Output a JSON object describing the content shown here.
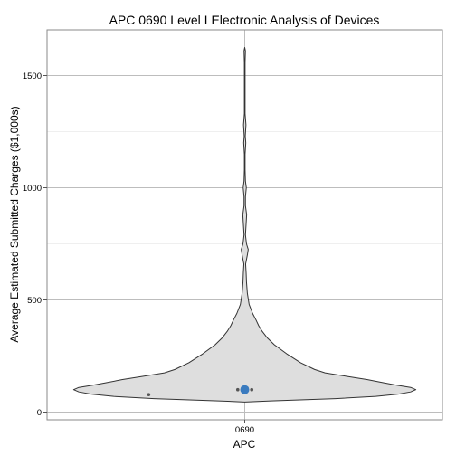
{
  "chart_data": {
    "type": "violin",
    "title": "APC 0690 Level I Electronic Analysis of Devices",
    "xlabel": "APC",
    "ylabel": "Average Estimated Submitted Charges ($1,000s)",
    "categories": [
      "0690"
    ],
    "ylim": [
      -25,
      1700
    ],
    "y_ticks": [
      0,
      500,
      1000,
      1500
    ],
    "y_tick_labels": [
      "0",
      "500",
      "1000",
      "1500"
    ],
    "grid": true,
    "colors": {
      "violin_fill": "#dedede",
      "violin_stroke": "#333333",
      "mean_point": "#3a7bbf",
      "outlier_point": "#555555",
      "grid_major": "#bdbdbd",
      "grid_minor": "#efefef",
      "panel_border": "#8a8a8a"
    },
    "violin_profile": [
      {
        "y": 45,
        "w": 0.0
      },
      {
        "y": 50,
        "w": 0.15
      },
      {
        "y": 60,
        "w": 0.52
      },
      {
        "y": 70,
        "w": 0.75
      },
      {
        "y": 80,
        "w": 0.88
      },
      {
        "y": 90,
        "w": 0.95
      },
      {
        "y": 100,
        "w": 0.98
      },
      {
        "y": 110,
        "w": 0.95
      },
      {
        "y": 120,
        "w": 0.87
      },
      {
        "y": 130,
        "w": 0.8
      },
      {
        "y": 145,
        "w": 0.7
      },
      {
        "y": 160,
        "w": 0.58
      },
      {
        "y": 175,
        "w": 0.46
      },
      {
        "y": 190,
        "w": 0.4
      },
      {
        "y": 220,
        "w": 0.32
      },
      {
        "y": 260,
        "w": 0.24
      },
      {
        "y": 300,
        "w": 0.17
      },
      {
        "y": 330,
        "w": 0.13
      },
      {
        "y": 360,
        "w": 0.1
      },
      {
        "y": 385,
        "w": 0.08
      },
      {
        "y": 410,
        "w": 0.065
      },
      {
        "y": 440,
        "w": 0.045
      },
      {
        "y": 480,
        "w": 0.025
      },
      {
        "y": 530,
        "w": 0.015
      },
      {
        "y": 580,
        "w": 0.01
      },
      {
        "y": 620,
        "w": 0.008
      },
      {
        "y": 660,
        "w": 0.005
      },
      {
        "y": 700,
        "w": 0.015
      },
      {
        "y": 725,
        "w": 0.02
      },
      {
        "y": 750,
        "w": 0.01
      },
      {
        "y": 790,
        "w": 0.004
      },
      {
        "y": 840,
        "w": 0.008
      },
      {
        "y": 880,
        "w": 0.011
      },
      {
        "y": 920,
        "w": 0.004
      },
      {
        "y": 960,
        "w": 0.004
      },
      {
        "y": 1000,
        "w": 0.009
      },
      {
        "y": 1030,
        "w": 0.004
      },
      {
        "y": 1080,
        "w": 0.002
      },
      {
        "y": 1150,
        "w": 0.002
      },
      {
        "y": 1200,
        "w": 0.006
      },
      {
        "y": 1230,
        "w": 0.003
      },
      {
        "y": 1280,
        "w": 0.007
      },
      {
        "y": 1330,
        "w": 0.002
      },
      {
        "y": 1450,
        "w": 0.002
      },
      {
        "y": 1560,
        "w": 0.002
      },
      {
        "y": 1610,
        "w": 0.004
      },
      {
        "y": 1625,
        "w": 0.0
      }
    ],
    "points": [
      {
        "x_offset": -0.55,
        "y": 78,
        "kind": "outlier"
      },
      {
        "x_offset": -0.04,
        "y": 100,
        "kind": "outlier"
      },
      {
        "x_offset": 0.04,
        "y": 100,
        "kind": "outlier"
      },
      {
        "x_offset": 0.0,
        "y": 100,
        "kind": "mean"
      }
    ]
  }
}
